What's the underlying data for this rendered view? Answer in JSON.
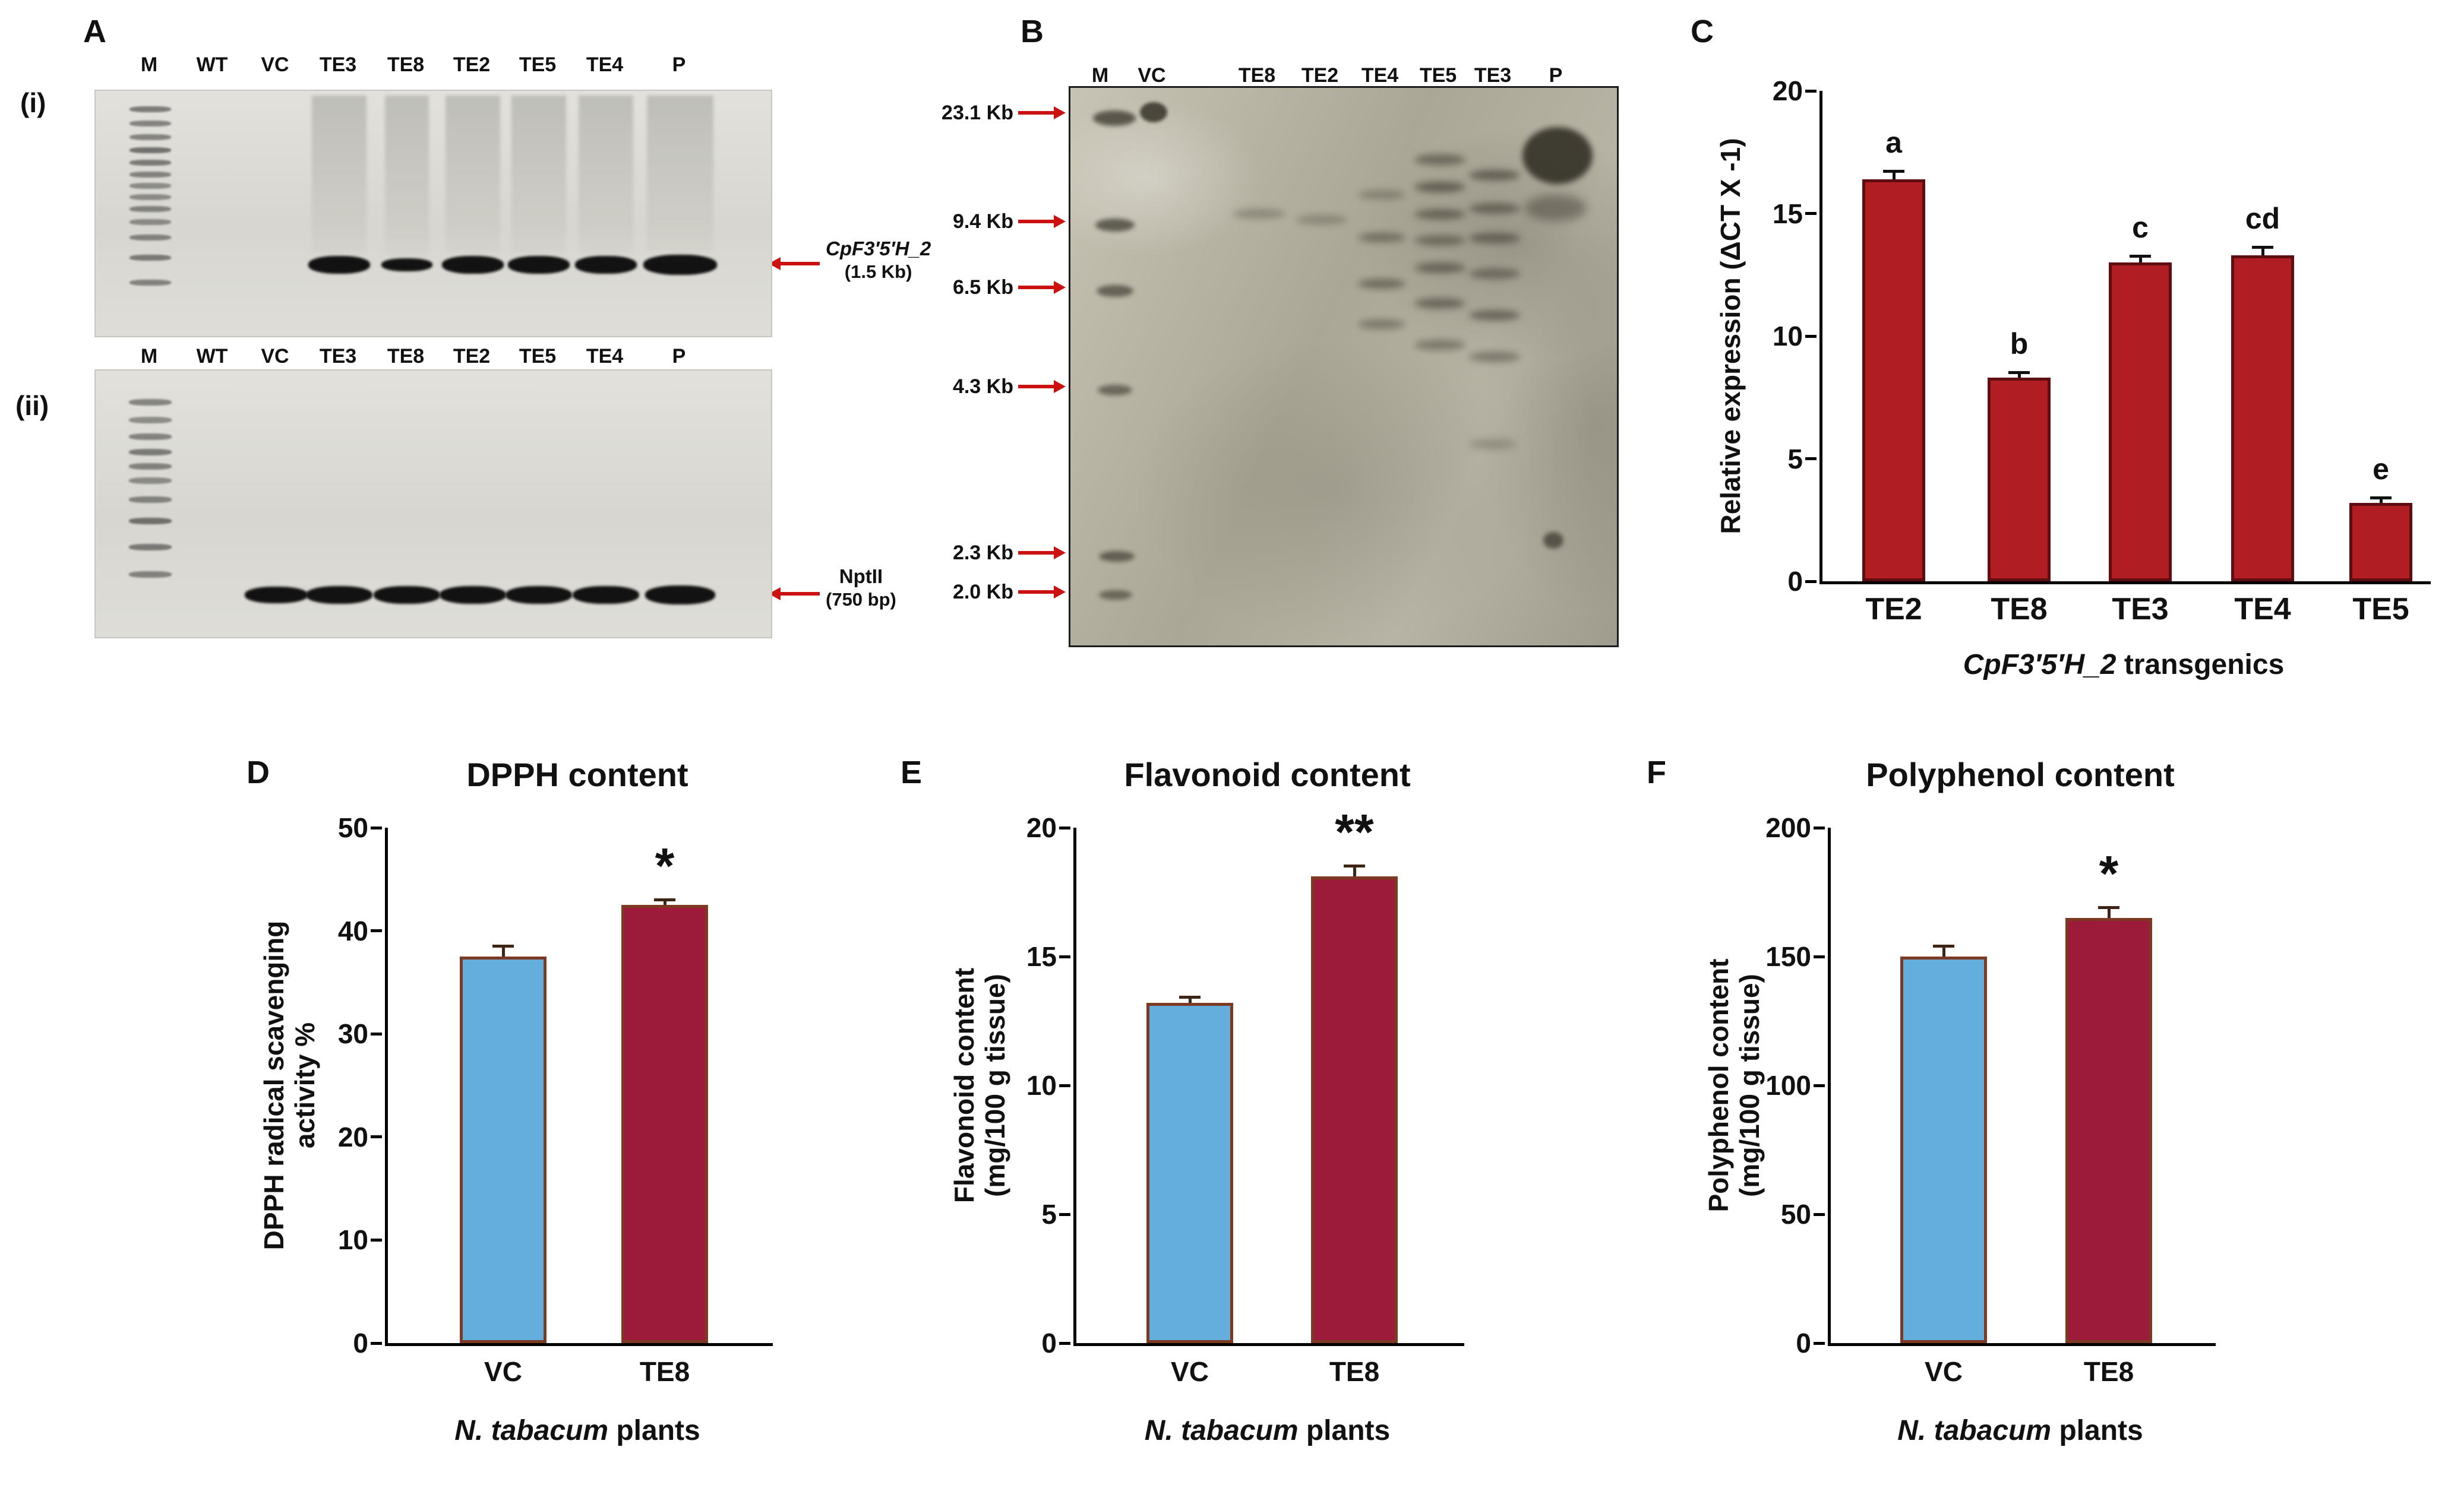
{
  "panels": {
    "a": "A",
    "b": "B",
    "c": "C",
    "d": "D",
    "e": "E",
    "f": "F"
  },
  "panelA": {
    "sub1": "(i)",
    "sub2": "(ii)",
    "gel1": {
      "lanes": [
        "M",
        "WT",
        "VC",
        "TE3",
        "TE8",
        "TE2",
        "TE5",
        "TE4",
        "P"
      ],
      "band_lanes": [
        "TE3",
        "TE8",
        "TE2",
        "TE5",
        "TE4",
        "P"
      ],
      "gene": "CpF3′5′H_2",
      "size": "(1.5 Kb)"
    },
    "gel2": {
      "lanes": [
        "M",
        "WT",
        "VC",
        "TE3",
        "TE8",
        "TE2",
        "TE5",
        "TE4",
        "P"
      ],
      "band_lanes": [
        "VC",
        "TE3",
        "TE8",
        "TE2",
        "TE5",
        "TE4",
        "P"
      ],
      "gene": "NptII",
      "size": "(750 bp)"
    }
  },
  "panelB": {
    "lanes": [
      "M",
      "VC",
      "TE8",
      "TE2",
      "TE4",
      "TE5",
      "TE3",
      "P"
    ],
    "markers": [
      "23.1 Kb",
      "9.4 Kb",
      "6.5 Kb",
      "4.3 Kb",
      "2.3 Kb",
      "2.0 Kb"
    ]
  },
  "colors": {
    "arrow": "#CC1111",
    "panelC_bar": "#B01E23",
    "vc_bar": "#63AEDC",
    "te8_bar": "#9C1B3B",
    "bar_border": "#7C3A22"
  },
  "chart_data": [
    {
      "id": "panelC",
      "type": "bar",
      "panel_label": "C",
      "categories": [
        "TE2",
        "TE8",
        "TE3",
        "TE4",
        "TE5"
      ],
      "values": [
        16.4,
        8.3,
        13.0,
        13.3,
        3.2
      ],
      "errors": [
        0.3,
        0.2,
        0.25,
        0.3,
        0.2
      ],
      "annotations": [
        "a",
        "b",
        "c",
        "cd",
        "e"
      ],
      "annotation_style": "letters",
      "ylabel_lines": [
        "Relative expression (ΔCT X -1)"
      ],
      "xlabel_italic": "CpF3′5′H_2",
      "xlabel_rest": " transgenics",
      "ylim": [
        0,
        20
      ],
      "yticks": [
        0,
        5,
        10,
        15,
        20
      ],
      "grid": false,
      "legend": null,
      "bar_color": "#B01E23",
      "bar_border": "#5E0D10"
    },
    {
      "id": "panelD",
      "type": "bar",
      "panel_label": "D",
      "title": "DPPH content",
      "categories": [
        "VC",
        "TE8"
      ],
      "values": [
        37.5,
        42.5
      ],
      "errors": [
        1.0,
        0.5
      ],
      "annotations": [
        "",
        "*"
      ],
      "annotation_style": "stars",
      "ylabel_lines": [
        "DPPH radical scavenging",
        "activity %"
      ],
      "xlabel_italic": "N. tabacum",
      "xlabel_rest": " plants",
      "ylim": [
        0,
        50
      ],
      "yticks": [
        0,
        10,
        20,
        30,
        40,
        50
      ],
      "grid": false,
      "legend": null,
      "bar_colors": [
        "#63AEDC",
        "#9C1B3B"
      ],
      "bar_border": "#7C3A22"
    },
    {
      "id": "panelE",
      "type": "bar",
      "panel_label": "E",
      "title": "Flavonoid content",
      "categories": [
        "VC",
        "TE8"
      ],
      "values": [
        13.2,
        18.1
      ],
      "errors": [
        0.2,
        0.4
      ],
      "annotations": [
        "",
        "**"
      ],
      "annotation_style": "stars",
      "ylabel_lines": [
        "Flavonoid content",
        "(mg/100 g tissue)"
      ],
      "xlabel_italic": "N. tabacum",
      "xlabel_rest": " plants",
      "ylim": [
        0,
        20
      ],
      "yticks": [
        0,
        5,
        10,
        15,
        20
      ],
      "grid": false,
      "legend": null,
      "bar_colors": [
        "#63AEDC",
        "#9C1B3B"
      ],
      "bar_border": "#7C3A22"
    },
    {
      "id": "panelF",
      "type": "bar",
      "panel_label": "F",
      "title": "Polyphenol content",
      "categories": [
        "VC",
        "TE8"
      ],
      "values": [
        150,
        165
      ],
      "errors": [
        4,
        4
      ],
      "annotations": [
        "",
        "*"
      ],
      "annotation_style": "stars",
      "ylabel_lines": [
        "Polyphenol content",
        "(mg/100 g tissue)"
      ],
      "xlabel_italic": "N. tabacum",
      "xlabel_rest": " plants",
      "ylim": [
        0,
        200
      ],
      "yticks": [
        0,
        50,
        100,
        150,
        200
      ],
      "grid": false,
      "legend": null,
      "bar_colors": [
        "#63AEDC",
        "#9C1B3B"
      ],
      "bar_border": "#7C3A22"
    }
  ]
}
